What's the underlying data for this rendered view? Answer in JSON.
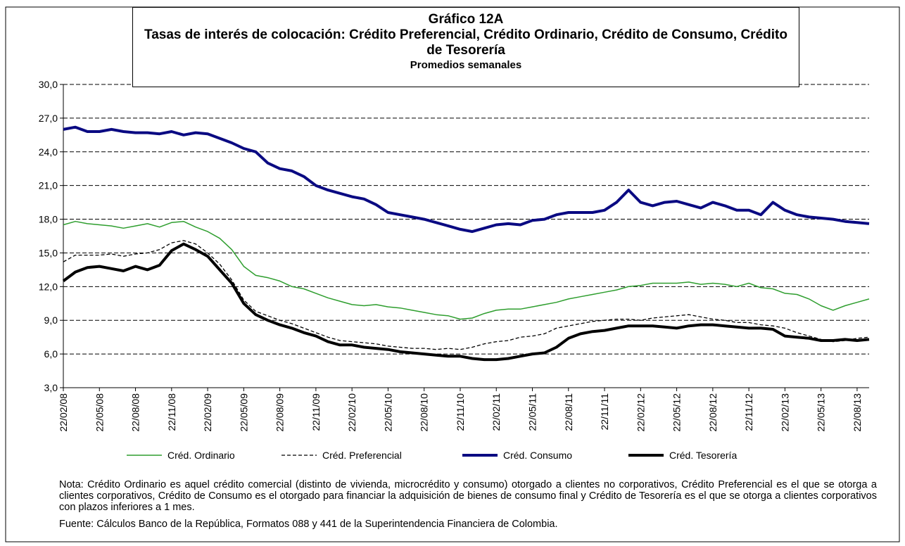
{
  "chart_data": {
    "type": "line",
    "title": "Gráfico 12A",
    "subtitle": "Tasas de interés de colocación: Crédito Preferencial, Crédito Ordinario, Crédito de Consumo, Crédito de Tesorería",
    "subtitle2": "Promedios semanales",
    "categories": [
      "22/02/08",
      null,
      null,
      "22/05/08",
      null,
      null,
      "22/08/08",
      null,
      null,
      "22/11/08",
      null,
      null,
      "22/02/09",
      null,
      null,
      "22/05/09",
      null,
      null,
      "22/08/09",
      null,
      null,
      "22/11/09",
      null,
      null,
      "22/02/10",
      null,
      null,
      "22/05/10",
      null,
      null,
      "22/08/10",
      null,
      null,
      "22/11/10",
      null,
      null,
      "22/02/11",
      null,
      null,
      "22/05/11",
      null,
      null,
      "22/08/11",
      null,
      null,
      "22/11/11",
      null,
      null,
      "22/02/12",
      null,
      null,
      "22/05/12",
      null,
      null,
      "22/08/12",
      null,
      null,
      "22/11/12",
      null,
      null,
      "22/02/13",
      null,
      null,
      "22/05/13",
      null,
      null,
      "22/08/13",
      null
    ],
    "series": [
      {
        "name": "Créd. Ordinario",
        "color": "#2e9e2e",
        "width": 1.5,
        "dashed": false,
        "values": [
          17.5,
          17.8,
          17.6,
          17.5,
          17.4,
          17.2,
          17.4,
          17.6,
          17.3,
          17.7,
          17.8,
          17.3,
          16.9,
          16.3,
          15.3,
          13.8,
          13.0,
          12.8,
          12.5,
          12.0,
          11.8,
          11.4,
          11.0,
          10.7,
          10.4,
          10.3,
          10.4,
          10.2,
          10.1,
          9.9,
          9.7,
          9.5,
          9.4,
          9.1,
          9.2,
          9.6,
          9.9,
          10.0,
          10.0,
          10.2,
          10.4,
          10.6,
          10.9,
          11.1,
          11.3,
          11.5,
          11.7,
          12.0,
          12.1,
          12.3,
          12.3,
          12.3,
          12.4,
          12.2,
          12.3,
          12.2,
          12.0,
          12.3,
          11.9,
          11.8,
          11.4,
          11.3,
          10.9,
          10.3,
          9.9,
          10.3,
          10.6,
          10.9
        ]
      },
      {
        "name": "Créd. Preferencial",
        "color": "#000000",
        "width": 1.3,
        "dashed": true,
        "values": [
          14.2,
          14.8,
          14.8,
          14.8,
          14.9,
          14.7,
          14.9,
          15.0,
          15.3,
          15.9,
          16.1,
          15.8,
          15.0,
          14.0,
          12.6,
          10.8,
          9.8,
          9.4,
          9.0,
          8.7,
          8.3,
          7.9,
          7.5,
          7.2,
          7.1,
          7.0,
          6.9,
          6.7,
          6.6,
          6.5,
          6.5,
          6.4,
          6.5,
          6.4,
          6.6,
          6.9,
          7.1,
          7.2,
          7.5,
          7.6,
          7.8,
          8.3,
          8.5,
          8.7,
          8.9,
          9.0,
          9.1,
          9.1,
          9.0,
          9.2,
          9.3,
          9.4,
          9.5,
          9.3,
          9.1,
          9.0,
          8.8,
          8.8,
          8.6,
          8.5,
          8.3,
          7.9,
          7.6,
          7.3,
          7.1,
          7.2,
          7.4,
          7.5
        ]
      },
      {
        "name": "Créd. Consumo",
        "color": "#0a0a82",
        "width": 4,
        "dashed": false,
        "values": [
          26.0,
          26.2,
          25.8,
          25.8,
          26.0,
          25.8,
          25.7,
          25.7,
          25.6,
          25.8,
          25.5,
          25.7,
          25.6,
          25.2,
          24.8,
          24.3,
          24.0,
          23.0,
          22.5,
          22.3,
          21.8,
          21.0,
          20.6,
          20.3,
          20.0,
          19.8,
          19.3,
          18.6,
          18.4,
          18.2,
          18.0,
          17.7,
          17.4,
          17.1,
          16.9,
          17.2,
          17.5,
          17.6,
          17.5,
          17.9,
          18.0,
          18.4,
          18.6,
          18.6,
          18.6,
          18.8,
          19.5,
          20.6,
          19.5,
          19.2,
          19.5,
          19.6,
          19.3,
          19.0,
          19.5,
          19.2,
          18.8,
          18.8,
          18.4,
          19.5,
          18.8,
          18.4,
          18.2,
          18.1,
          18.0,
          17.8,
          17.7,
          17.6
        ]
      },
      {
        "name": "Créd. Tesorería",
        "color": "#000000",
        "width": 4,
        "dashed": false,
        "values": [
          12.5,
          13.3,
          13.7,
          13.8,
          13.6,
          13.4,
          13.8,
          13.5,
          13.9,
          15.2,
          15.8,
          15.3,
          14.7,
          13.5,
          12.3,
          10.5,
          9.5,
          9.0,
          8.6,
          8.3,
          7.9,
          7.6,
          7.1,
          6.8,
          6.8,
          6.6,
          6.5,
          6.4,
          6.2,
          6.1,
          6.0,
          5.9,
          5.8,
          5.8,
          5.6,
          5.5,
          5.5,
          5.6,
          5.8,
          6.0,
          6.1,
          6.6,
          7.4,
          7.8,
          8.0,
          8.1,
          8.3,
          8.5,
          8.5,
          8.5,
          8.4,
          8.3,
          8.5,
          8.6,
          8.6,
          8.5,
          8.4,
          8.3,
          8.3,
          8.2,
          7.6,
          7.5,
          7.4,
          7.2,
          7.2,
          7.3,
          7.2,
          7.3
        ]
      }
    ],
    "ylim": [
      3,
      30
    ],
    "yticks": [
      {
        "value": 3,
        "label": "3,0"
      },
      {
        "value": 6,
        "label": "6,0"
      },
      {
        "value": 9,
        "label": "9,0"
      },
      {
        "value": 12,
        "label": "12,0"
      },
      {
        "value": 15,
        "label": "15,0"
      },
      {
        "value": 18,
        "label": "18,0"
      },
      {
        "value": 21,
        "label": "21,0"
      },
      {
        "value": 24,
        "label": "24,0"
      },
      {
        "value": 27,
        "label": "27,0"
      },
      {
        "value": 30,
        "label": "30,0"
      }
    ],
    "grid": true,
    "legend": "bottom",
    "note": "Nota: Crédito Ordinario es aquel crédito comercial (distinto de vivienda, microcrédito y consumo) otorgado a clientes no corporativos, Crédito Preferencial es el que se otorga a clientes corporativos, Crédito de Consumo es el otorgado para financiar la adquisición de bienes de consumo final y Crédito de Tesorería es el que se otorga a clientes corporativos con plazos inferiores a 1 mes.",
    "source": "Fuente: Cálculos Banco de la República, Formatos 088 y 441 de la Superintendencia Financiera de Colombia."
  }
}
